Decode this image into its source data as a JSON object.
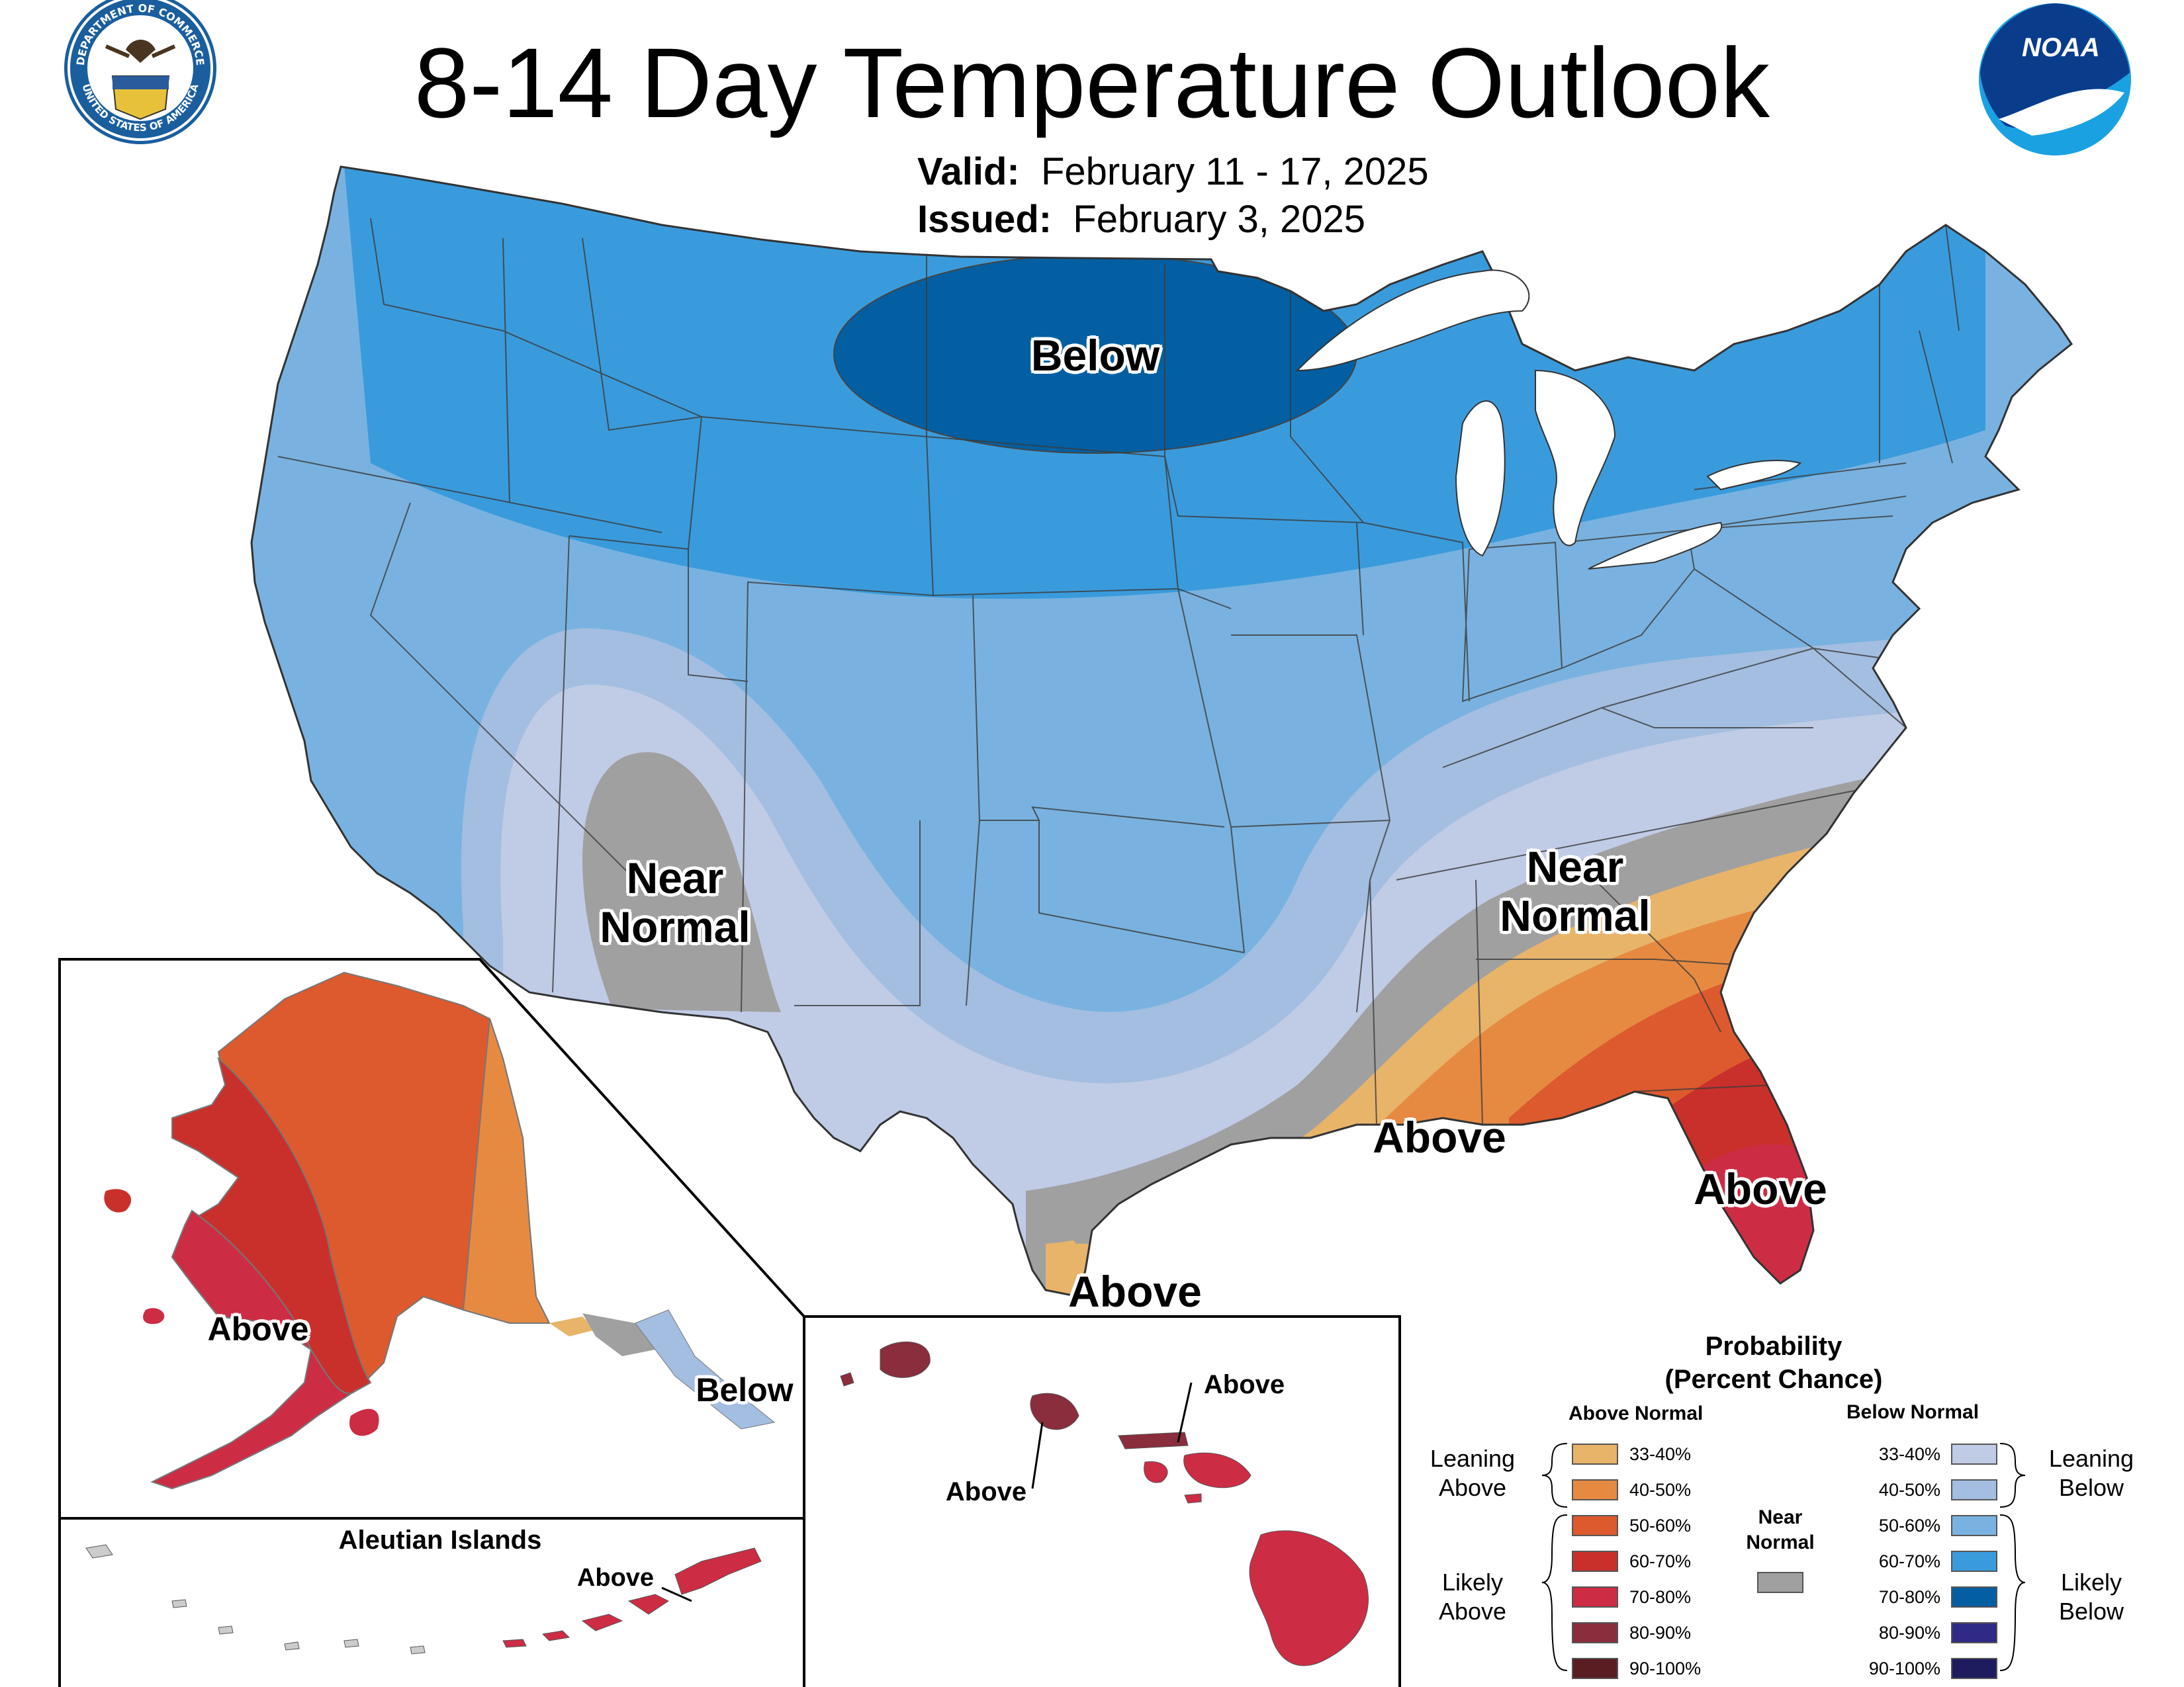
{
  "header": {
    "title": "8-14 Day Temperature Outlook",
    "valid_label": "Valid:",
    "valid_value": "February 11 - 17, 2025",
    "issued_label": "Issued:",
    "issued_value": "February 3, 2025"
  },
  "logos": {
    "doc_seal_text": "DEPARTMENT OF COMMERCE",
    "doc_seal_text_bottom": "UNITED STATES OF AMERICA",
    "noaa_text": "NOAA"
  },
  "map_labels": {
    "below_north": "Below",
    "near_normal_west_1": "Near",
    "near_normal_west_2": "Normal",
    "near_normal_east_1": "Near",
    "near_normal_east_2": "Normal",
    "above_gulf": "Above",
    "above_florida": "Above",
    "above_texas": "Above"
  },
  "insets": {
    "alaska_above": "Above",
    "alaska_below": "Below",
    "aleutian_title": "Aleutian Islands",
    "aleutian_above": "Above",
    "hawaii_above_1": "Above",
    "hawaii_above_2": "Above"
  },
  "legend": {
    "title_1": "Probability",
    "title_2": "(Percent Chance)",
    "above_head": "Above Normal",
    "below_head": "Below Normal",
    "near_head_1": "Near",
    "near_head_2": "Normal",
    "leaning_above_1": "Leaning",
    "leaning_above_2": "Above",
    "likely_above_1": "Likely",
    "likely_above_2": "Above",
    "leaning_below_1": "Leaning",
    "leaning_below_2": "Below",
    "likely_below_1": "Likely",
    "likely_below_2": "Below",
    "above_items": [
      {
        "label": "33-40%",
        "color": "#E8B46A"
      },
      {
        "label": "40-50%",
        "color": "#E68A42"
      },
      {
        "label": "50-60%",
        "color": "#DD5A2E"
      },
      {
        "label": "60-70%",
        "color": "#C9302C"
      },
      {
        "label": "70-80%",
        "color": "#CD2C45"
      },
      {
        "label": "80-90%",
        "color": "#8A2D3C"
      },
      {
        "label": "90-100%",
        "color": "#5A1D22"
      }
    ],
    "below_items": [
      {
        "label": "33-40%",
        "color": "#C0CBE6"
      },
      {
        "label": "40-50%",
        "color": "#A3BEE0"
      },
      {
        "label": "50-60%",
        "color": "#79B2E0"
      },
      {
        "label": "60-70%",
        "color": "#3A9BDC"
      },
      {
        "label": "70-80%",
        "color": "#035FA2"
      },
      {
        "label": "80-90%",
        "color": "#2E2A85"
      },
      {
        "label": "90-100%",
        "color": "#1E1B5E"
      }
    ],
    "near_color": "#A0A0A0"
  }
}
